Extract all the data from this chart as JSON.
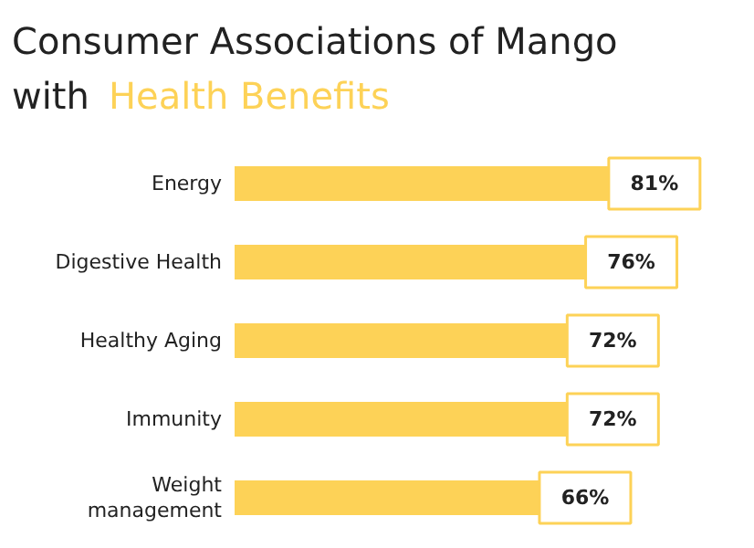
{
  "chart_data": {
    "type": "bar",
    "orientation": "horizontal",
    "title": "Consumer Associations of Mango with Health Benefits",
    "categories": [
      "Energy",
      "Digestive Health",
      "Healthy Aging",
      "Immunity",
      "Weight management"
    ],
    "values": [
      81,
      76,
      72,
      72,
      66
    ],
    "value_labels": [
      "81%",
      "76%",
      "72%",
      "72%",
      "66%"
    ],
    "color": "#fdd257"
  }
}
